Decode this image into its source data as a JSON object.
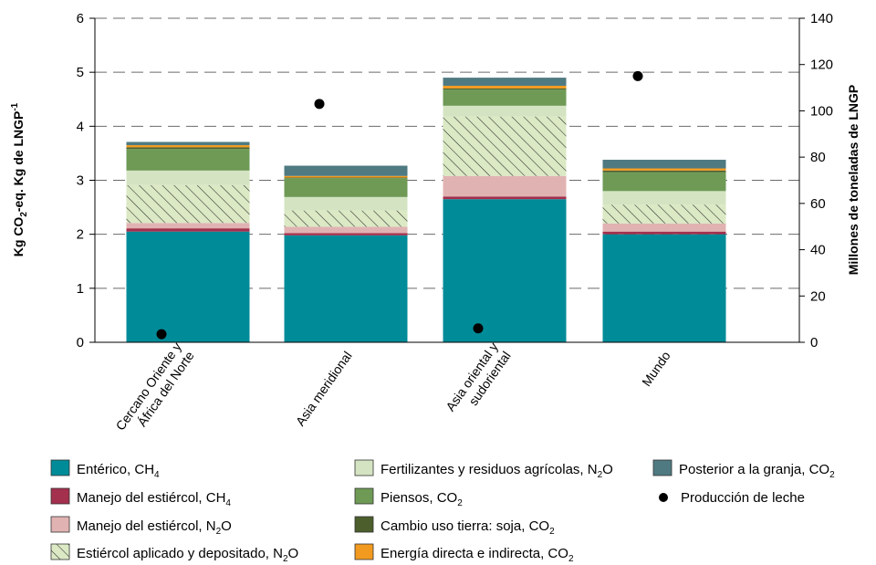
{
  "chart_data": {
    "type": "bar",
    "stacked": true,
    "categories": [
      "Cercano Oriente y África del Norte",
      "Asia meridional",
      "Asia oriental y sudoriental",
      "Mundo"
    ],
    "category_label_lines": [
      [
        "Cercano Oriente y",
        "África del Norte"
      ],
      [
        "Asia meridional"
      ],
      [
        "Asia oriental y",
        "sudoriental"
      ],
      [
        "Mundo"
      ]
    ],
    "ylabel": {
      "main": "Kg CO",
      "sub": "2",
      "mid": "-eq. Kg de LNGP",
      "sup": "-1"
    },
    "y2label": "Millones de toneladas de LNGP",
    "ylim": [
      0,
      6
    ],
    "yticks": [
      "0",
      "1",
      "2",
      "3",
      "4",
      "5",
      "6"
    ],
    "y2lim": [
      0,
      140
    ],
    "y2ticks": [
      "0",
      "20",
      "40",
      "60",
      "80",
      "100",
      "120",
      "140"
    ],
    "grid": "horizontal dashed",
    "legend_position": "bottom",
    "series": [
      {
        "name": "Entérico, CH",
        "sub": "4",
        "color": "#008b98",
        "pattern": "solid",
        "values": [
          2.05,
          1.98,
          2.65,
          2.0
        ]
      },
      {
        "name": "Manejo del estiércol, CH",
        "sub": "4",
        "color": "#a3304d",
        "pattern": "solid",
        "values": [
          0.06,
          0.04,
          0.05,
          0.05
        ]
      },
      {
        "name": "Manejo del estiércol, N",
        "sub": "2",
        "tail": "O",
        "color": "#e0b3b2",
        "pattern": "solid",
        "values": [
          0.1,
          0.12,
          0.38,
          0.15
        ]
      },
      {
        "name": "Estiércol aplicado y depositado, N",
        "sub": "2",
        "tail": "O",
        "color": "#dbe9c4",
        "pattern": "hatch",
        "values": [
          0.7,
          0.3,
          1.1,
          0.35
        ]
      },
      {
        "name": "Fertilizantes y residuos agrícolas, N",
        "sub": "2",
        "tail": "O",
        "color": "#d4e4c2",
        "pattern": "solid",
        "values": [
          0.27,
          0.25,
          0.2,
          0.25
        ]
      },
      {
        "name": "Piensos, CO",
        "sub": "2",
        "color": "#6e9a55",
        "pattern": "solid",
        "values": [
          0.4,
          0.35,
          0.3,
          0.35
        ]
      },
      {
        "name": "Cambio uso tierra: soja, CO",
        "sub": "2",
        "color": "#4b5e2c",
        "pattern": "solid",
        "values": [
          0.03,
          0.01,
          0.02,
          0.03
        ]
      },
      {
        "name": "Energía directa e indirecta, CO",
        "sub": "2",
        "color": "#f29a1f",
        "pattern": "solid",
        "values": [
          0.04,
          0.03,
          0.05,
          0.04
        ]
      },
      {
        "name": "Posterior a la granja, CO",
        "sub": "2",
        "color": "#4f7a82",
        "pattern": "solid",
        "values": [
          0.06,
          0.19,
          0.15,
          0.16
        ]
      }
    ],
    "points_series": {
      "name": "Producción de leche",
      "axis": "secondary",
      "color": "#000000",
      "values": [
        3.5,
        103,
        6,
        115
      ]
    }
  }
}
